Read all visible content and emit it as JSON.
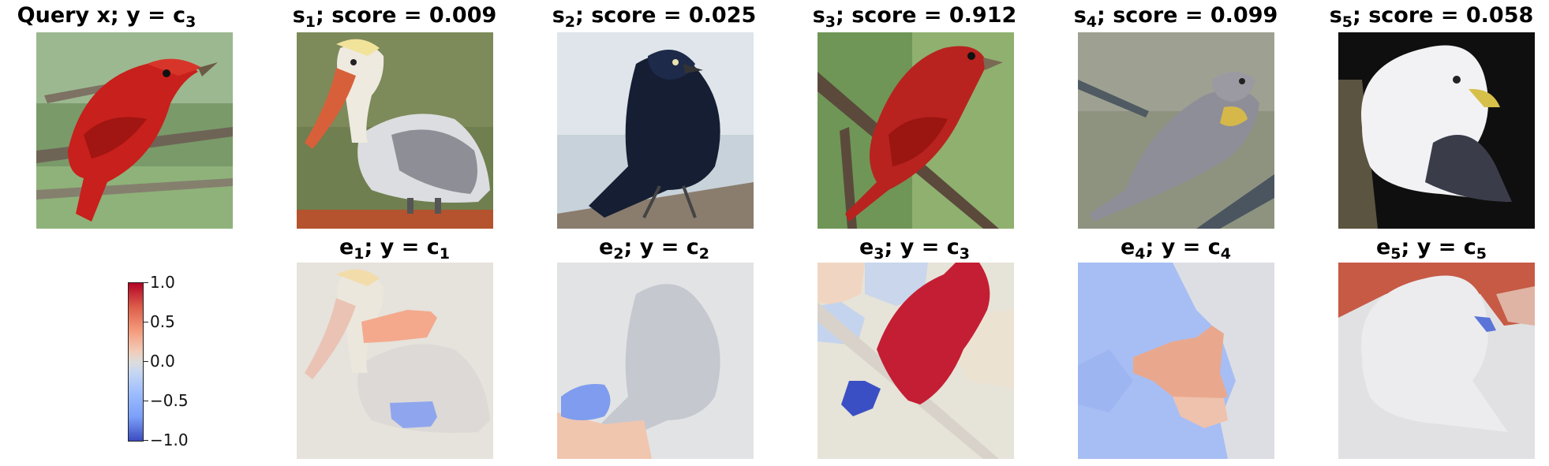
{
  "query": {
    "title_main": "Query x; y = c",
    "title_sub": "3"
  },
  "samples": [
    {
      "s_main": "s",
      "s_sub": "1",
      "score_text": "; score = 0.009",
      "e_main": "e",
      "e_sub": "1",
      "y_text": "; y = c",
      "y_sub": "1",
      "score": 0.009
    },
    {
      "s_main": "s",
      "s_sub": "2",
      "score_text": "; score = 0.025",
      "e_main": "e",
      "e_sub": "2",
      "y_text": "; y = c",
      "y_sub": "2",
      "score": 0.025
    },
    {
      "s_main": "s",
      "s_sub": "3",
      "score_text": "; score = 0.912",
      "e_main": "e",
      "e_sub": "3",
      "y_text": "; y = c",
      "y_sub": "3",
      "score": 0.912
    },
    {
      "s_main": "s",
      "s_sub": "4",
      "score_text": "; score = 0.099",
      "e_main": "e",
      "e_sub": "4",
      "y_text": "; y = c",
      "y_sub": "4",
      "score": 0.099
    },
    {
      "s_main": "s",
      "s_sub": "5",
      "score_text": "; score = 0.058",
      "e_main": "e",
      "e_sub": "5",
      "y_text": "; y = c",
      "y_sub": "5",
      "score": 0.058
    }
  ],
  "colorbar": {
    "ticks": [
      "1.0",
      "0.5",
      "0.0",
      "−0.5",
      "−1.0"
    ],
    "range": [
      -1.0,
      1.0
    ],
    "colormap": "coolwarm"
  },
  "colors": {
    "positive": "#b40426",
    "neutral": "#dddcdc",
    "negative": "#3b4cc0"
  }
}
